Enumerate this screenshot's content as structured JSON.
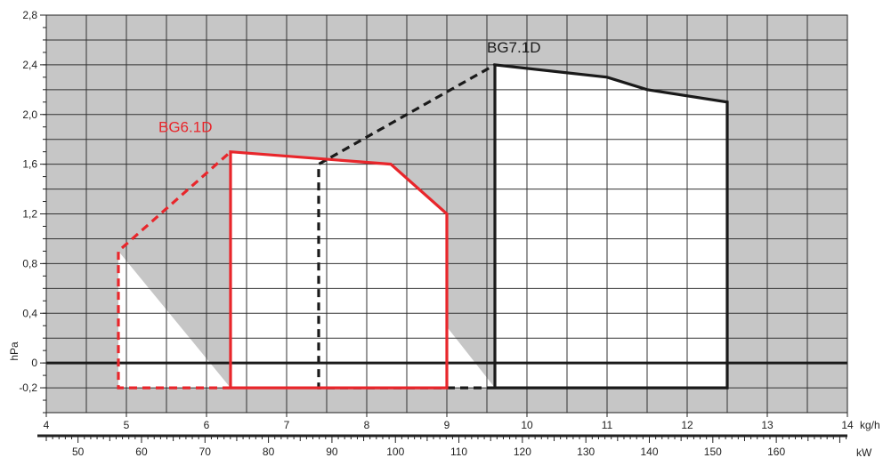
{
  "chart_data": {
    "type": "line",
    "title": "",
    "ylabel": "hPa",
    "x_unit_label": "kg/h",
    "x2_unit_label": "kW",
    "ylim": [
      -0.4,
      2.8
    ],
    "xlim": [
      4,
      14
    ],
    "y_tick_labels": [
      "2,8",
      "2,4",
      "2,0",
      "1,6",
      "1,2",
      "0,8",
      "0,4",
      "0",
      "-0,2"
    ],
    "y_tick_values": [
      2.8,
      2.4,
      2.0,
      1.6,
      1.2,
      0.8,
      0.4,
      0,
      -0.2
    ],
    "x_tick_labels": [
      "4",
      "5",
      "6",
      "7",
      "8",
      "9",
      "10",
      "11",
      "12",
      "13",
      "14"
    ],
    "x_tick_values": [
      4,
      5,
      6,
      7,
      8,
      9,
      10,
      11,
      12,
      13,
      14
    ],
    "x2_tick_labels": [
      "50",
      "60",
      "70",
      "80",
      "90",
      "100",
      "110",
      "120",
      "130",
      "140",
      "150",
      "160"
    ],
    "x2_tick_values": [
      50,
      60,
      70,
      80,
      90,
      100,
      110,
      120,
      130,
      140,
      150,
      160
    ],
    "x2_range_at_x_ends": [
      45,
      171.2
    ],
    "grid": true,
    "colors": {
      "shaded_area": "#c6c6c6",
      "grid": "#333333",
      "series_black": "#1a1a1a",
      "series_red": "#e8262b"
    },
    "series": [
      {
        "name": "BG7.1D",
        "color": "#1a1a1a",
        "solid_path": [
          [
            9.6,
            -0.2
          ],
          [
            9.6,
            2.4
          ],
          [
            11.0,
            2.3
          ],
          [
            11.5,
            2.2
          ],
          [
            12.5,
            2.1
          ],
          [
            12.5,
            -0.2
          ],
          [
            9.6,
            -0.2
          ]
        ],
        "dashed_path": [
          [
            9.6,
            -0.2
          ],
          [
            7.4,
            -0.2
          ],
          [
            7.4,
            1.6
          ],
          [
            9.6,
            2.4
          ]
        ],
        "label_at": [
          9.5,
          2.5
        ]
      },
      {
        "name": "BG6.1D",
        "color": "#e8262b",
        "solid_path": [
          [
            6.3,
            -0.2
          ],
          [
            6.3,
            1.7
          ],
          [
            8.3,
            1.6
          ],
          [
            9.0,
            1.2
          ],
          [
            9.0,
            -0.2
          ],
          [
            6.3,
            -0.2
          ]
        ],
        "dashed_path": [
          [
            6.3,
            -0.2
          ],
          [
            4.9,
            -0.2
          ],
          [
            4.9,
            0.9
          ],
          [
            6.3,
            1.7
          ]
        ],
        "label_at": [
          5.4,
          1.86
        ]
      }
    ]
  }
}
